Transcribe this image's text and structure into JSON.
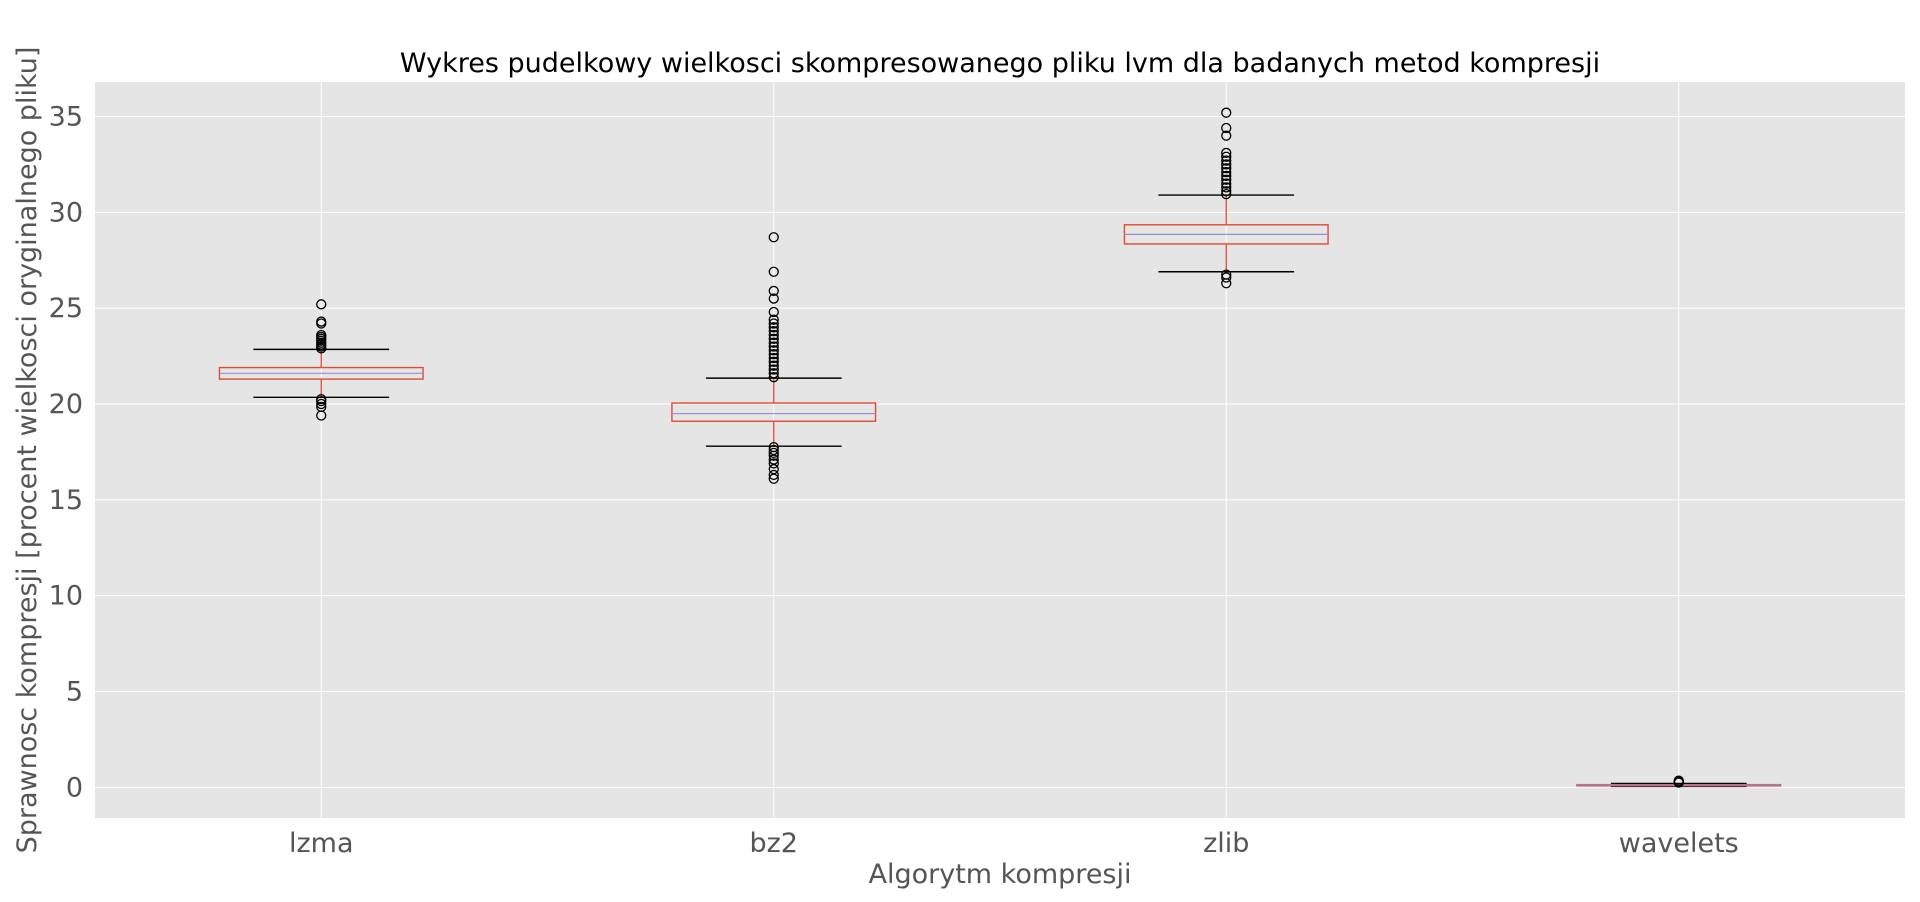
{
  "chart_data": {
    "type": "box",
    "title": "Wykres pudelkowy wielkosci skompresowanego pliku lvm dla badanych metod kompresji",
    "xlabel": "Algorytm kompresji",
    "ylabel": "Sprawnosc kompresji [procent wielkosci oryginalnego pliku]",
    "ylim": [
      -1.6,
      36.8
    ],
    "yticks": [
      0,
      5,
      10,
      15,
      20,
      25,
      30,
      35
    ],
    "grid": true,
    "style": "ggplot",
    "colors": {
      "plot_bg": "#E5E5E5",
      "grid": "#FFFFFF",
      "box": "#E24A33",
      "median": "#8EBA42",
      "mean_line": "#988ED5",
      "whisker_cap": "#000000",
      "tick_text": "#555555",
      "title_text": "#000000"
    },
    "categories": [
      "lzma",
      "bz2",
      "zlib",
      "wavelets"
    ],
    "boxes": [
      {
        "name": "lzma",
        "q1": 21.3,
        "median": 21.6,
        "q3": 21.9,
        "whisker_low": 20.35,
        "whisker_high": 22.85,
        "fliers": [
          19.4,
          19.85,
          20.0,
          20.15,
          20.25,
          22.9,
          23.0,
          23.1,
          23.2,
          23.3,
          23.4,
          23.5,
          23.6,
          24.2,
          24.3,
          25.2
        ]
      },
      {
        "name": "bz2",
        "q1": 19.1,
        "median": 19.5,
        "q3": 20.05,
        "whisker_low": 17.8,
        "whisker_high": 21.35,
        "fliers": [
          16.1,
          16.3,
          16.6,
          16.9,
          17.1,
          17.3,
          17.45,
          17.6,
          17.75,
          21.4,
          21.6,
          21.8,
          22.0,
          22.2,
          22.4,
          22.6,
          22.8,
          23.0,
          23.2,
          23.4,
          23.6,
          23.8,
          24.0,
          24.2,
          24.4,
          24.8,
          25.5,
          25.9,
          26.9,
          28.7
        ]
      },
      {
        "name": "zlib",
        "q1": 28.35,
        "median": 28.85,
        "q3": 29.35,
        "whisker_low": 26.9,
        "whisker_high": 30.9,
        "fliers": [
          26.3,
          26.6,
          26.75,
          30.95,
          31.1,
          31.3,
          31.5,
          31.7,
          31.9,
          32.1,
          32.3,
          32.5,
          32.7,
          32.9,
          33.1,
          34.0,
          34.4,
          35.2
        ]
      },
      {
        "name": "wavelets",
        "q1": 0.08,
        "median": 0.12,
        "q3": 0.14,
        "whisker_low": 0.05,
        "whisker_high": 0.2,
        "fliers": [
          0.25,
          0.3,
          0.35
        ]
      }
    ]
  }
}
